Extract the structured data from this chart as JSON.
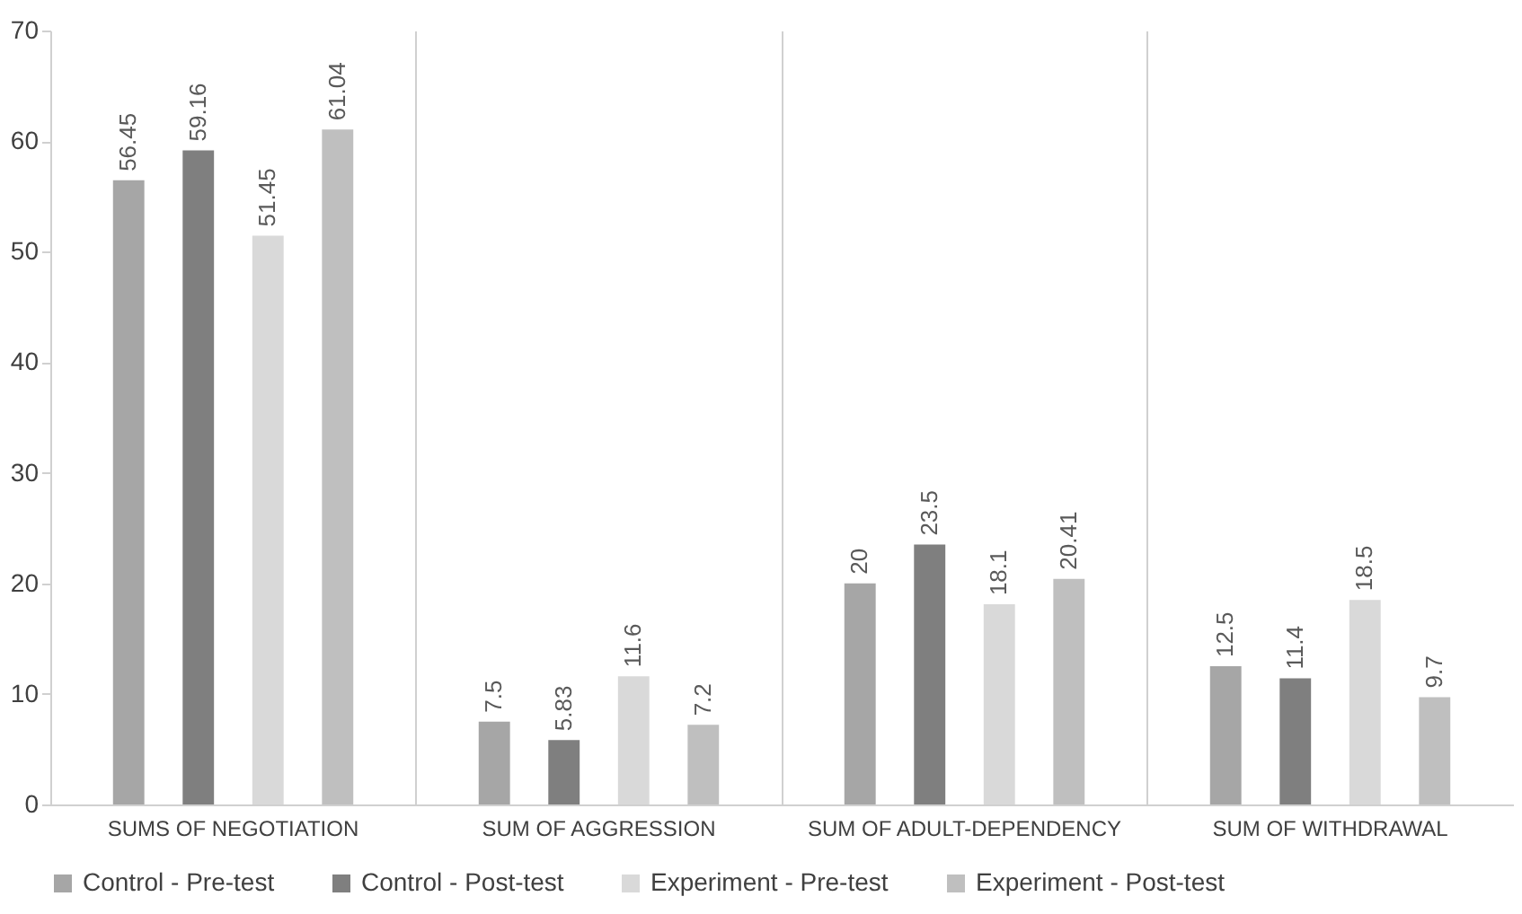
{
  "chart_data": {
    "type": "bar",
    "categories": [
      "SUMS OF NEGOTIATION",
      "SUM OF AGGRESSION",
      "SUM OF ADULT-DEPENDENCY",
      "SUM OF WITHDRAWAL"
    ],
    "series": [
      {
        "name": "Control - Pre-test",
        "color": "#a6a6a6",
        "values": [
          56.45,
          7.5,
          20,
          12.5
        ]
      },
      {
        "name": "Control - Post-test",
        "color": "#7f7f7f",
        "values": [
          59.16,
          5.83,
          23.5,
          11.4
        ]
      },
      {
        "name": "Experiment - Pre-test",
        "color": "#d9d9d9",
        "values": [
          51.45,
          11.6,
          18.1,
          18.5
        ]
      },
      {
        "name": "Experiment - Post-test",
        "color": "#bfbfbf",
        "values": [
          61.04,
          7.2,
          20.41,
          9.7
        ]
      }
    ],
    "ylim": [
      0,
      70
    ],
    "yticks": [
      0,
      10,
      20,
      30,
      40,
      50,
      60,
      70
    ],
    "grid": "x",
    "legend": "bottom",
    "data_labels": true
  }
}
